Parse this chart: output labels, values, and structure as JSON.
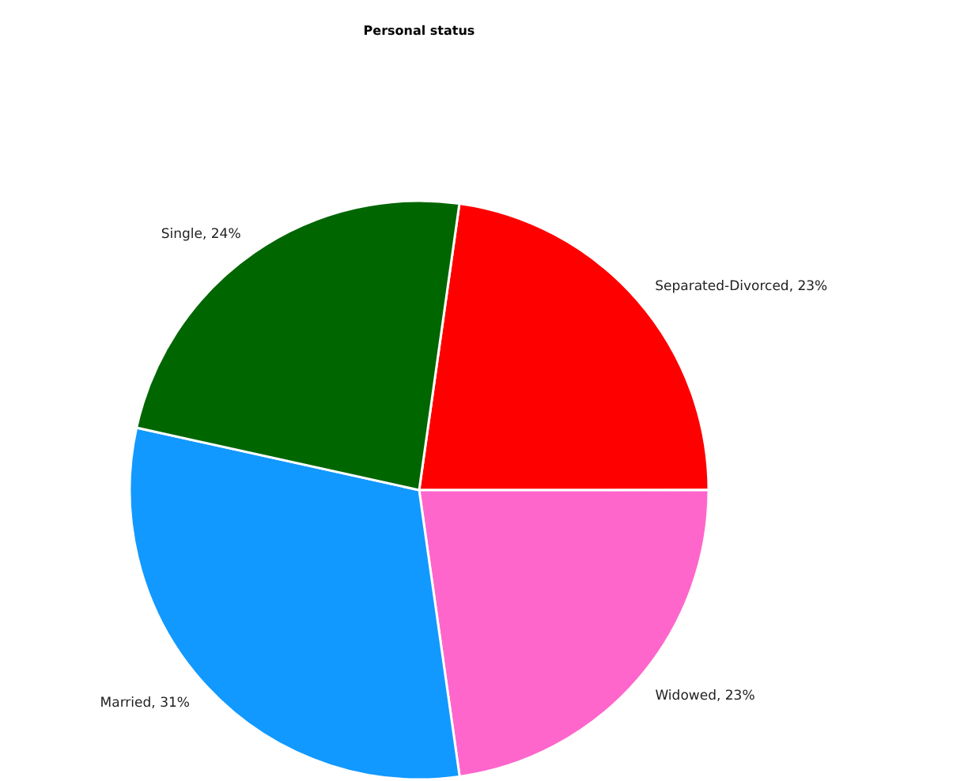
{
  "chart_data": {
    "type": "pie",
    "title": "Personal status",
    "categories": [
      "Separated-Divorced, 23%",
      "Widowed, 23%",
      "Married, 31%",
      "Single, 24%"
    ],
    "values": [
      23,
      23,
      31,
      24
    ],
    "colors": [
      "#ff0000",
      "#ff66cc",
      "#1199ff",
      "#006600"
    ]
  }
}
